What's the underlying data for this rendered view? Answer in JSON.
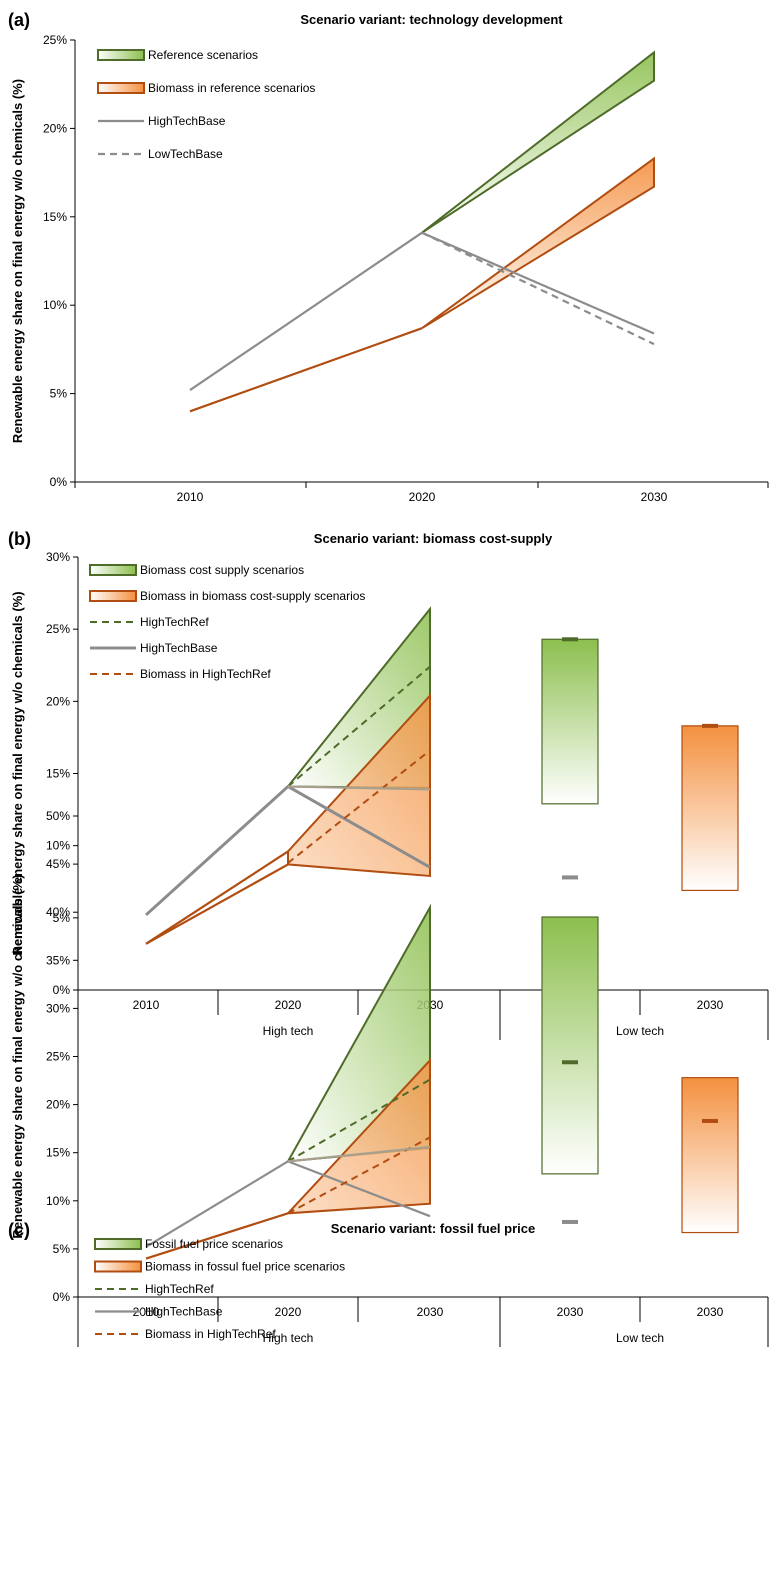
{
  "colors": {
    "green_dark": "#4f6b2a",
    "green_fill": "#8cbf4e",
    "orange_dark": "#b14d10",
    "orange_fill": "#f4903f",
    "gray": "#8c8c8c",
    "axis": "#000000"
  },
  "chart_data": [
    {
      "type": "area",
      "panel_label": "(a)",
      "title": "Scenario variant: technology development",
      "ylabel": "Renewable energy share on final energy w/o chemicals (%)",
      "ylim": [
        0,
        25
      ],
      "yticks": [
        "0%",
        "5%",
        "10%",
        "15%",
        "20%",
        "25%"
      ],
      "categories": [
        "2010",
        "2020",
        "2030"
      ],
      "legend": [
        {
          "label": "Reference scenarios",
          "style": "band-green"
        },
        {
          "label": "Biomass in reference scenarios",
          "style": "band-orange"
        },
        {
          "label": "HighTechBase",
          "style": "gray-solid"
        },
        {
          "label": "LowTechBase",
          "style": "gray-dashed"
        }
      ],
      "bands": [
        {
          "name": "Reference scenarios",
          "color": "green",
          "x": [
            "2020",
            "2030"
          ],
          "low": [
            14.1,
            22.7
          ],
          "high": [
            14.1,
            24.3
          ]
        },
        {
          "name": "Biomass in reference scenarios",
          "color": "orange",
          "x": [
            "2020",
            "2030"
          ],
          "low": [
            8.7,
            16.7
          ],
          "high": [
            8.7,
            18.3
          ]
        }
      ],
      "series": [
        {
          "name": "Biomass in reference scenarios",
          "style": "orange-solid",
          "x": [
            "2010",
            "2020"
          ],
          "values": [
            4.0,
            8.7
          ]
        },
        {
          "name": "HighTechBase",
          "style": "gray-solid",
          "x": [
            "2010",
            "2020",
            "2030"
          ],
          "values": [
            5.2,
            14.1,
            8.4
          ]
        },
        {
          "name": "LowTechBase",
          "style": "gray-dashed",
          "x": [
            "2020",
            "2030"
          ],
          "values": [
            14.1,
            7.8
          ]
        }
      ]
    },
    {
      "type": "area",
      "panel_label": "(b)",
      "title": "Scenario variant: biomass cost-supply",
      "ylabel": "Renewable energy share on final energy w/o chemicals (%)",
      "ylim": [
        0,
        30
      ],
      "yticks": [
        "0%",
        "5%",
        "10%",
        "15%",
        "20%",
        "25%",
        "30%"
      ],
      "categories": [
        "2010",
        "2020",
        "2030",
        "2030",
        "2030"
      ],
      "groups": [
        {
          "label": "High tech",
          "from": 0,
          "to": 2
        },
        {
          "label": "Low tech",
          "from": 3,
          "to": 4
        }
      ],
      "legend": [
        {
          "label": "Biomass cost supply scenarios",
          "style": "band-green"
        },
        {
          "label": "Biomass in biomass cost-supply scenarios",
          "style": "band-orange"
        },
        {
          "label": "HighTechRef",
          "style": "green-dashed"
        },
        {
          "label": "HighTechBase",
          "style": "gray-solid-thick"
        },
        {
          "label": "Biomass in HighTechRef",
          "style": "orange-dashed"
        }
      ],
      "bands": [
        {
          "name": "Biomass cost supply scenarios",
          "color": "green",
          "x": [
            1,
            2
          ],
          "low": [
            14.1,
            14.0
          ],
          "high": [
            14.1,
            26.4
          ]
        },
        {
          "name": "Biomass in biomass cost-supply scenarios",
          "color": "orange",
          "x": [
            1,
            2
          ],
          "low": [
            8.7,
            7.9
          ],
          "high": [
            9.6,
            20.4
          ]
        }
      ],
      "series": [
        {
          "name": "HighTechRef",
          "style": "green-dashed",
          "x": [
            1,
            2
          ],
          "values": [
            14.1,
            22.4
          ]
        },
        {
          "name": "HighTechBase",
          "style": "gray-solid-thick",
          "x": [
            0,
            1,
            2
          ],
          "values": [
            5.2,
            14.1,
            8.5
          ]
        },
        {
          "name": "Biomass in HighTechRef",
          "style": "orange-dashed",
          "x": [
            1,
            2
          ],
          "values": [
            8.8,
            16.6
          ]
        },
        {
          "name": "Biomass cost supply scenarios",
          "style": "gray-light",
          "x": [
            1,
            2
          ],
          "values": [
            14.1,
            13.9
          ]
        },
        {
          "name": "Biomass in biomass cost-supply scenarios",
          "style": "orange-solid",
          "x": [
            0,
            1
          ],
          "values": [
            3.2,
            8.7
          ]
        },
        {
          "name": "Biomass in biomass cost-supply scenarios",
          "style": "orange-solid",
          "x": [
            0,
            1
          ],
          "values": [
            3.2,
            9.6
          ]
        }
      ],
      "boxes": [
        {
          "name": "Biomass cost supply scenarios",
          "color": "green",
          "x": 3,
          "low": 12.9,
          "high": 24.3,
          "marker": 24.3
        },
        {
          "name": "Biomass in biomass cost-supply scenarios",
          "color": "orange",
          "x": 4,
          "low": 6.9,
          "high": 18.3,
          "marker": 18.3
        }
      ],
      "markers": [
        {
          "name": "HighTechBase",
          "color": "gray",
          "x": 3,
          "value": 7.8
        }
      ]
    },
    {
      "type": "area",
      "panel_label": "(c)",
      "title": "Scenario variant: fossil fuel price",
      "ylabel": "Renewable energy share on final energy w/o chemicals (%)",
      "ylim": [
        0,
        50
      ],
      "yticks": [
        "0%",
        "5%",
        "10%",
        "15%",
        "20%",
        "25%",
        "30%",
        "35%",
        "40%",
        "45%",
        "50%"
      ],
      "categories": [
        "2010",
        "2020",
        "2030",
        "2030",
        "2030"
      ],
      "groups": [
        {
          "label": "High tech",
          "from": 0,
          "to": 2
        },
        {
          "label": "Low tech",
          "from": 3,
          "to": 4
        }
      ],
      "legend": [
        {
          "label": "Fossil fuel price scenarios",
          "style": "band-green"
        },
        {
          "label": "Biomass in fossul fuel price scenarios",
          "style": "band-orange"
        },
        {
          "label": "HighTechRef",
          "style": "green-dashed"
        },
        {
          "label": "HighTechBase",
          "style": "gray-solid"
        },
        {
          "label": "Biomass in HighTechRef",
          "style": "orange-dashed"
        }
      ],
      "bands": [
        {
          "name": "Fossil fuel price scenarios",
          "color": "green",
          "x": [
            1,
            2
          ],
          "low": [
            14.1,
            15.5
          ],
          "high": [
            14.1,
            40.5
          ]
        },
        {
          "name": "Biomass in fossul fuel price scenarios",
          "color": "orange",
          "x": [
            1,
            2
          ],
          "low": [
            8.7,
            9.7
          ],
          "high": [
            8.7,
            24.6
          ]
        }
      ],
      "series": [
        {
          "name": "HighTechRef",
          "style": "green-dashed",
          "x": [
            1,
            2
          ],
          "values": [
            14.1,
            22.6
          ]
        },
        {
          "name": "HighTechBase",
          "style": "gray-solid",
          "x": [
            0,
            1,
            2
          ],
          "values": [
            5.2,
            14.1,
            8.4
          ]
        },
        {
          "name": "Biomass in HighTechRef",
          "style": "orange-dashed",
          "x": [
            1,
            2
          ],
          "values": [
            8.7,
            16.6
          ]
        },
        {
          "name": "Fossil fuel price scenarios",
          "style": "gray-light",
          "x": [
            1,
            2
          ],
          "values": [
            14.1,
            15.6
          ]
        },
        {
          "name": "Biomass in fossul fuel price scenarios",
          "style": "orange-solid",
          "x": [
            0,
            1
          ],
          "values": [
            4.0,
            8.7
          ]
        }
      ],
      "boxes": [
        {
          "name": "Fossil fuel price scenarios",
          "color": "green",
          "x": 3,
          "low": 12.8,
          "high": 39.5,
          "marker": 24.4
        },
        {
          "name": "Biomass in fossul fuel price scenarios",
          "color": "orange",
          "x": 4,
          "low": 6.7,
          "high": 22.8,
          "marker": 18.3
        }
      ],
      "markers": [
        {
          "name": "HighTechBase",
          "color": "gray",
          "x": 3,
          "value": 7.8
        }
      ]
    }
  ]
}
